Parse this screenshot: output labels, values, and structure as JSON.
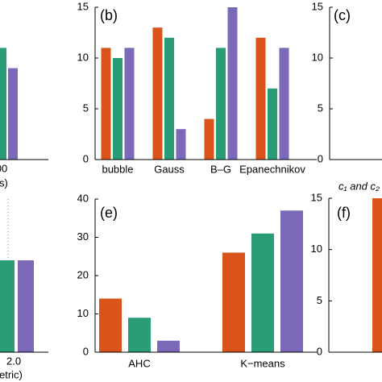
{
  "chart_data": [
    {
      "type": "bar",
      "categories": [
        null
      ],
      "series": [
        {
          "color": "#2a9c78",
          "values": [
            11
          ]
        },
        {
          "color": "#7b68b9",
          "values": [
            9
          ]
        }
      ],
      "ylim": [
        0,
        15
      ],
      "x_tick_labels": [
        "00"
      ],
      "xlabel": "s)"
    },
    {
      "type": "bar",
      "title": "(b)",
      "categories": [
        "bubble",
        "Gauss",
        "B–G",
        "Epanechnikov"
      ],
      "series": [
        {
          "color": "#d9541a",
          "values": [
            11,
            13,
            4,
            12
          ]
        },
        {
          "color": "#2a9c78",
          "values": [
            10,
            12,
            11,
            7
          ]
        },
        {
          "color": "#7b68b9",
          "values": [
            11,
            3,
            15,
            11
          ]
        }
      ],
      "ylim": [
        0,
        15
      ],
      "yticks": [
        0,
        5,
        10,
        15
      ]
    },
    {
      "type": "bar",
      "title": "(c)",
      "categories": [],
      "series": [],
      "ylim": [
        0,
        15
      ],
      "yticks": [
        0,
        5,
        10,
        15
      ],
      "xlabel": "c₁ and c₂ ("
    },
    {
      "type": "bar",
      "categories": [
        null
      ],
      "series": [
        {
          "color": "#2a9c78",
          "values": [
            24
          ]
        },
        {
          "color": "#7b68b9",
          "values": [
            24
          ]
        }
      ],
      "ylim": [
        0,
        40
      ],
      "x_tick_labels": [
        "2.0"
      ],
      "xlabel": "etric)",
      "grid": true
    },
    {
      "type": "bar",
      "title": "(e)",
      "categories": [
        "AHC",
        "K−means"
      ],
      "series": [
        {
          "color": "#d9541a",
          "values": [
            14,
            26
          ]
        },
        {
          "color": "#2a9c78",
          "values": [
            9,
            31
          ]
        },
        {
          "color": "#7b68b9",
          "values": [
            3,
            37
          ]
        }
      ],
      "ylim": [
        0,
        40
      ],
      "yticks": [
        0,
        10,
        20,
        30,
        40
      ]
    },
    {
      "type": "bar",
      "title": "(f)",
      "categories": [
        null
      ],
      "series": [
        {
          "color": "#d9541a",
          "values": [
            15
          ]
        }
      ],
      "ylim": [
        0,
        15
      ],
      "yticks": [
        0,
        5,
        10,
        15
      ]
    }
  ]
}
